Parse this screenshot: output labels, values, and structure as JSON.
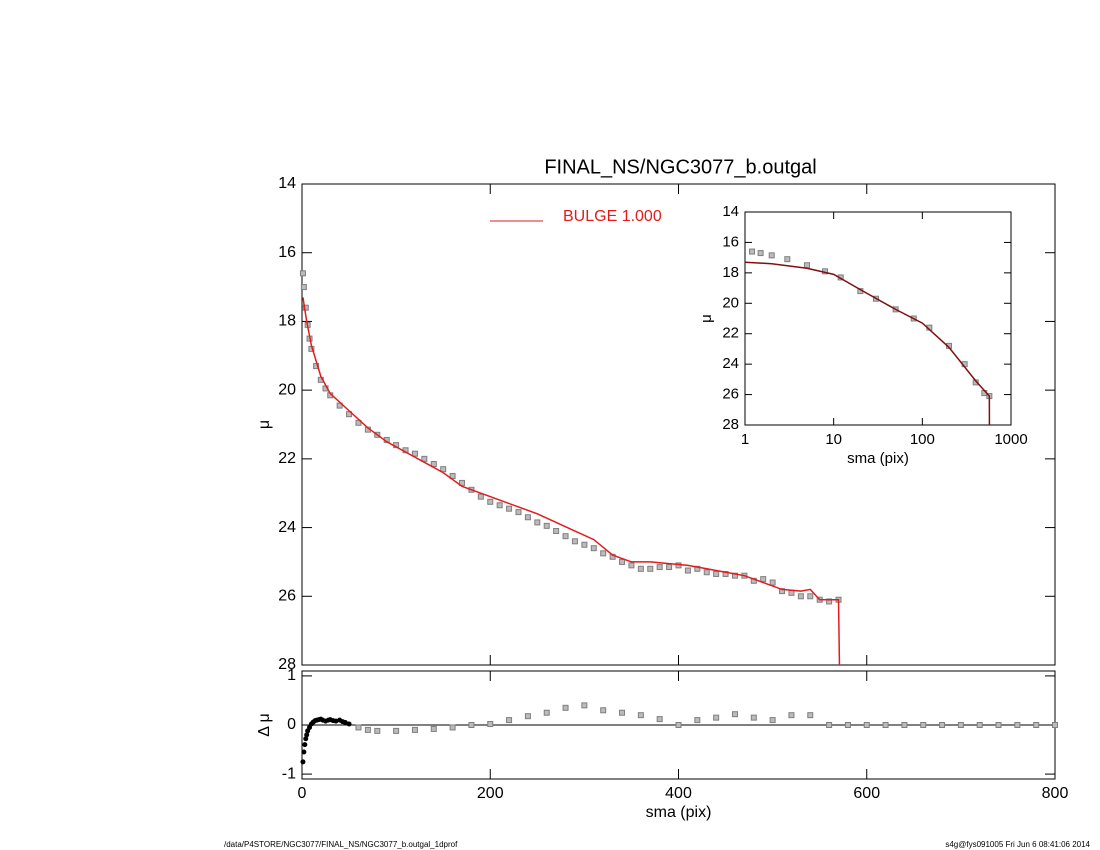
{
  "chart_data": [
    {
      "type": "scatter",
      "title": "FINAL_NS/NGC3077_b.outgal",
      "ylabel": "μ",
      "xlim": [
        0,
        800
      ],
      "xticks": [
        0,
        200,
        400,
        600,
        800
      ],
      "xticklabels": false,
      "ylim": [
        28,
        14
      ],
      "yticks": [
        14,
        16,
        18,
        20,
        22,
        24,
        26,
        28
      ],
      "legend": "upper-center",
      "series": [
        {
          "color": "#7f7f7f",
          "mode": "markers",
          "x": [
            1,
            2,
            4,
            6,
            8,
            10,
            15,
            20,
            25,
            30,
            40,
            50,
            60,
            70,
            80,
            90,
            100,
            110,
            120,
            130,
            140,
            150,
            160,
            170,
            180,
            190,
            200,
            210,
            220,
            230,
            240,
            250,
            260,
            270,
            280,
            290,
            300,
            310,
            320,
            330,
            340,
            350,
            360,
            370,
            380,
            390,
            400,
            410,
            420,
            430,
            440,
            450,
            460,
            470,
            480,
            490,
            500,
            510,
            520,
            530,
            540,
            550,
            560,
            570
          ],
          "values": [
            16.6,
            17.0,
            17.6,
            18.1,
            18.5,
            18.8,
            19.3,
            19.7,
            19.95,
            20.15,
            20.45,
            20.7,
            20.95,
            21.15,
            21.3,
            21.45,
            21.6,
            21.75,
            21.85,
            22.0,
            22.15,
            22.3,
            22.5,
            22.7,
            22.9,
            23.1,
            23.25,
            23.35,
            23.45,
            23.55,
            23.7,
            23.85,
            23.95,
            24.1,
            24.25,
            24.4,
            24.5,
            24.6,
            24.75,
            24.85,
            25.0,
            25.1,
            25.2,
            25.2,
            25.15,
            25.15,
            25.1,
            25.25,
            25.2,
            25.3,
            25.35,
            25.35,
            25.4,
            25.4,
            25.55,
            25.5,
            25.6,
            25.85,
            25.9,
            26.0,
            26.0,
            26.1,
            26.15,
            26.1
          ]
        },
        {
          "name": "BULGE  1.000",
          "color": "#e41a1c",
          "mode": "lines",
          "x": [
            1,
            5,
            10,
            20,
            30,
            50,
            70,
            90,
            110,
            130,
            150,
            170,
            190,
            210,
            230,
            250,
            270,
            290,
            310,
            330,
            350,
            370,
            390,
            410,
            430,
            450,
            470,
            490,
            510,
            530,
            540,
            550,
            560,
            570,
            571
          ],
          "values": [
            17.3,
            18.0,
            18.7,
            19.6,
            20.1,
            20.6,
            21.1,
            21.5,
            21.8,
            22.1,
            22.4,
            22.8,
            23.0,
            23.2,
            23.4,
            23.6,
            23.85,
            24.1,
            24.35,
            24.8,
            25.0,
            25.0,
            25.05,
            25.1,
            25.2,
            25.3,
            25.4,
            25.6,
            25.8,
            25.85,
            25.8,
            26.1,
            26.1,
            26.1,
            28
          ]
        }
      ]
    },
    {
      "type": "scatter",
      "xlabel": "sma (pix)",
      "ylabel": "Δ μ",
      "xlim": [
        0,
        800
      ],
      "xticks": [
        0,
        200,
        400,
        600,
        800
      ],
      "ylim": [
        -1.1,
        1.1
      ],
      "yticks": [
        -1,
        0,
        1
      ],
      "hline": 0,
      "series": [
        {
          "color": "#000000",
          "mode": "dots",
          "x": [
            1,
            2,
            3,
            4,
            5,
            6,
            8,
            10,
            12,
            14,
            16,
            18,
            20,
            22,
            25,
            28,
            30,
            33,
            36,
            40,
            43,
            46,
            50
          ],
          "values": [
            -0.75,
            -0.55,
            -0.4,
            -0.28,
            -0.2,
            -0.12,
            -0.05,
            0.02,
            0.06,
            0.09,
            0.1,
            0.11,
            0.12,
            0.1,
            0.08,
            0.1,
            0.11,
            0.09,
            0.08,
            0.1,
            0.07,
            0.05,
            0.02
          ]
        },
        {
          "color": "#7f7f7f",
          "mode": "markers",
          "x": [
            60,
            70,
            80,
            100,
            120,
            140,
            160,
            180,
            200,
            220,
            240,
            260,
            280,
            300,
            320,
            340,
            360,
            380,
            400,
            420,
            440,
            460,
            480,
            500,
            520,
            540,
            560,
            580,
            600,
            620,
            640,
            660,
            680,
            700,
            720,
            740,
            760,
            780,
            800
          ],
          "values": [
            -0.05,
            -0.1,
            -0.12,
            -0.12,
            -0.1,
            -0.08,
            -0.05,
            0.0,
            0.02,
            0.1,
            0.18,
            0.25,
            0.35,
            0.4,
            0.3,
            0.25,
            0.2,
            0.12,
            0.0,
            0.1,
            0.15,
            0.22,
            0.15,
            0.1,
            0.2,
            0.2,
            0,
            0,
            0,
            0,
            0,
            0,
            0,
            0,
            0,
            0,
            0,
            0,
            0
          ]
        }
      ]
    },
    {
      "type": "scatter",
      "xlabel": "sma (pix)",
      "ylabel": "μ",
      "xlog": true,
      "xlim": [
        1,
        1000
      ],
      "xticks": [
        1,
        10,
        100,
        1000
      ],
      "ylim": [
        28,
        14
      ],
      "yticks": [
        14,
        16,
        18,
        20,
        22,
        24,
        26,
        28
      ],
      "series": [
        {
          "color": "#7f7f7f",
          "mode": "markers",
          "x": [
            1.2,
            1.5,
            2,
            3,
            5,
            8,
            12,
            20,
            30,
            50,
            80,
            120,
            200,
            300,
            400,
            500,
            570
          ],
          "values": [
            16.6,
            16.7,
            16.85,
            17.1,
            17.5,
            17.9,
            18.3,
            19.2,
            19.7,
            20.4,
            21.0,
            21.6,
            22.8,
            24.0,
            25.2,
            25.9,
            26.1
          ]
        },
        {
          "color": "#7f1010",
          "mode": "lines",
          "x": [
            1,
            2,
            5,
            10,
            20,
            50,
            100,
            200,
            400,
            570,
            571
          ],
          "values": [
            17.3,
            17.4,
            17.7,
            18.1,
            19.1,
            20.4,
            21.3,
            22.9,
            25.1,
            26.1,
            28
          ]
        }
      ]
    }
  ],
  "footer": {
    "left": "/data/P4STORE/NGC3077/FINAL_NS/NGC3077_b.outgal_1dprof",
    "right": "s4g@fys091005  Fri Jun  6 08:41:06 2014"
  }
}
